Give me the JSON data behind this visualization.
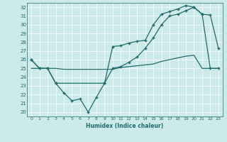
{
  "xlabel": "Humidex (Indice chaleur)",
  "background_color": "#cdeaea",
  "line_color": "#216b6b",
  "grid_color": "#b0d8d8",
  "xlim": [
    -0.5,
    23.5
  ],
  "ylim": [
    19.5,
    32.5
  ],
  "xticks": [
    0,
    1,
    2,
    3,
    4,
    5,
    6,
    7,
    8,
    9,
    10,
    11,
    12,
    13,
    14,
    15,
    16,
    17,
    18,
    19,
    20,
    21,
    22,
    23
  ],
  "yticks": [
    20,
    21,
    22,
    23,
    24,
    25,
    26,
    27,
    28,
    29,
    30,
    31,
    32
  ],
  "line1_x": [
    0,
    1,
    2,
    3,
    4,
    5,
    6,
    7,
    8,
    9,
    10,
    11,
    12,
    13,
    14,
    15,
    16,
    17,
    18,
    19,
    20,
    21,
    22,
    23
  ],
  "line1_y": [
    26,
    25,
    25,
    23.3,
    22.2,
    21.3,
    21.5,
    20.0,
    21.7,
    23.3,
    25.0,
    25.2,
    25.7,
    26.3,
    27.3,
    28.5,
    30.0,
    31.0,
    31.2,
    31.6,
    32.0,
    31.2,
    31.1,
    27.3
  ],
  "line2_x": [
    0,
    1,
    2,
    3,
    9,
    10,
    11,
    12,
    13,
    14,
    15,
    16,
    17,
    18,
    19,
    20,
    21,
    22,
    23
  ],
  "line2_y": [
    26,
    25,
    25,
    23.3,
    23.3,
    27.5,
    27.6,
    27.9,
    28.1,
    28.2,
    30.0,
    31.2,
    31.5,
    31.8,
    32.2,
    32.0,
    31.2,
    25.0,
    25.0
  ],
  "line3_x": [
    0,
    1,
    2,
    3,
    4,
    5,
    6,
    7,
    9,
    10,
    11,
    12,
    13,
    14,
    15,
    16,
    17,
    18,
    19,
    20,
    21,
    22,
    23
  ],
  "line3_y": [
    25,
    25,
    25,
    25,
    24.9,
    24.9,
    24.9,
    24.9,
    24.9,
    24.9,
    25.1,
    25.2,
    25.3,
    25.4,
    25.5,
    25.8,
    26.0,
    26.2,
    26.4,
    26.5,
    25.0,
    25.0,
    25.0
  ]
}
